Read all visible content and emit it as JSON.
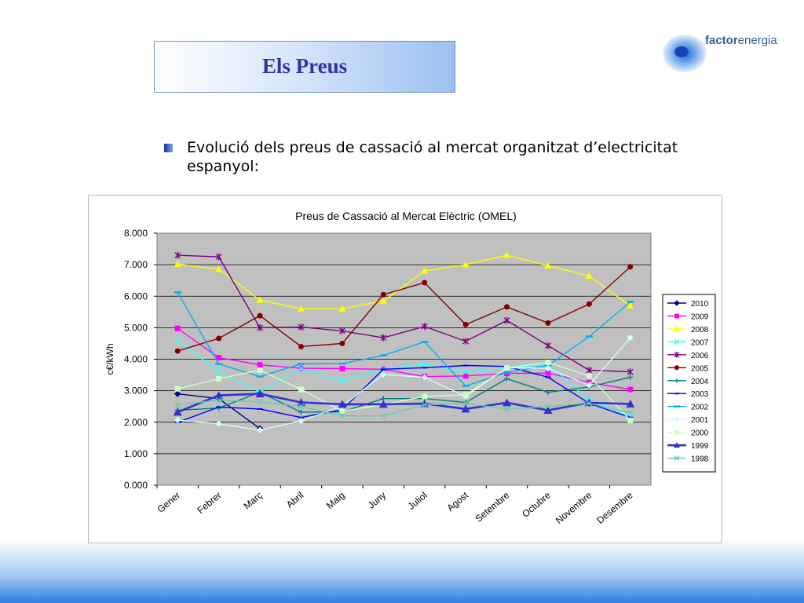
{
  "slide": {
    "title": "Els Preus",
    "bullet": "Evolució dels preus de cassació al mercat organitzat d’electricitat espanyol:"
  },
  "logo": {
    "brand_bold": "factor",
    "brand_light": "energia"
  },
  "colors": {
    "title": "#3333a6",
    "plot_bg": "#c0c0c0"
  },
  "chart_data": {
    "type": "line",
    "title": "Preus de Cassació al Mercat Elèctric (OMEL)",
    "xlabel": "",
    "ylabel": "c€/kWh",
    "ylim": [
      0,
      8
    ],
    "yticks": [
      "0.000",
      "1.000",
      "2.000",
      "3.000",
      "4.000",
      "5.000",
      "6.000",
      "7.000",
      "8.000"
    ],
    "grid": true,
    "legend_position": "right",
    "categories": [
      "Gener",
      "Febrer",
      "Març",
      "Abril",
      "Maig",
      "Juny",
      "Juliol",
      "Agost",
      "Setembre",
      "Octubre",
      "Novembre",
      "Desembre"
    ],
    "series": [
      {
        "name": "2010",
        "color": "#000080",
        "marker": "diamond",
        "values": [
          2.9,
          2.75,
          1.8,
          null,
          null,
          null,
          null,
          null,
          null,
          null,
          null,
          null
        ]
      },
      {
        "name": "2009",
        "color": "#ff00ff",
        "marker": "square",
        "values": [
          4.98,
          4.05,
          3.82,
          3.71,
          3.7,
          3.68,
          3.45,
          3.47,
          3.55,
          3.56,
          3.26,
          3.04
        ]
      },
      {
        "name": "2008",
        "color": "#ffff00",
        "marker": "triangle",
        "values": [
          7.02,
          6.85,
          5.88,
          5.6,
          5.6,
          5.85,
          6.8,
          7.0,
          7.3,
          6.97,
          6.64,
          5.7
        ]
      },
      {
        "name": "2007",
        "color": "#33ffff",
        "marker": "x",
        "values": [
          4.6,
          3.6,
          2.96,
          3.7,
          3.3,
          3.67,
          3.85,
          3.6,
          3.7,
          3.85,
          2.7,
          2.2
        ]
      },
      {
        "name": "2006",
        "color": "#800080",
        "marker": "asterisk",
        "values": [
          7.3,
          7.25,
          5.0,
          5.02,
          4.9,
          4.68,
          5.04,
          4.57,
          5.23,
          4.43,
          3.65,
          3.6
        ]
      },
      {
        "name": "2005",
        "color": "#800000",
        "marker": "circle",
        "values": [
          4.26,
          4.66,
          5.38,
          4.4,
          4.5,
          6.05,
          6.43,
          5.1,
          5.66,
          5.15,
          5.75,
          6.93
        ]
      },
      {
        "name": "2004",
        "color": "#008080",
        "marker": "plus",
        "values": [
          2.38,
          2.45,
          2.95,
          2.32,
          2.33,
          2.75,
          2.75,
          2.63,
          3.38,
          2.95,
          3.12,
          3.43
        ]
      },
      {
        "name": "2003",
        "color": "#0000ff",
        "marker": "dash",
        "values": [
          2.0,
          2.48,
          2.42,
          2.15,
          2.4,
          3.68,
          3.73,
          3.8,
          3.77,
          3.43,
          2.6,
          2.15
        ]
      },
      {
        "name": "2002",
        "color": "#00b0f0",
        "marker": "bar",
        "values": [
          6.12,
          3.85,
          3.45,
          3.85,
          3.86,
          4.12,
          4.55,
          3.15,
          3.58,
          3.8,
          4.72,
          5.82
        ]
      },
      {
        "name": "2001",
        "color": "#ccffff",
        "marker": "diamond",
        "values": [
          2.07,
          1.95,
          1.75,
          2.04,
          2.51,
          3.52,
          3.42,
          2.82,
          3.73,
          3.71,
          3.18,
          4.68
        ]
      },
      {
        "name": "2000",
        "color": "#ccffcc",
        "marker": "square",
        "values": [
          3.06,
          3.38,
          3.65,
          3.04,
          2.35,
          2.56,
          2.82,
          2.87,
          3.72,
          3.9,
          3.47,
          2.06
        ]
      },
      {
        "name": "1999",
        "color": "#3333cc",
        "marker": "triangle",
        "values": [
          2.32,
          2.85,
          2.9,
          2.63,
          2.57,
          2.57,
          2.59,
          2.42,
          2.62,
          2.38,
          2.62,
          2.58
        ]
      },
      {
        "name": "1998",
        "color": "#66ccaa",
        "marker": "x",
        "values": [
          2.55,
          2.7,
          2.65,
          2.5,
          2.2,
          2.2,
          2.55,
          2.6,
          2.42,
          2.5,
          2.6,
          2.3
        ]
      }
    ]
  }
}
